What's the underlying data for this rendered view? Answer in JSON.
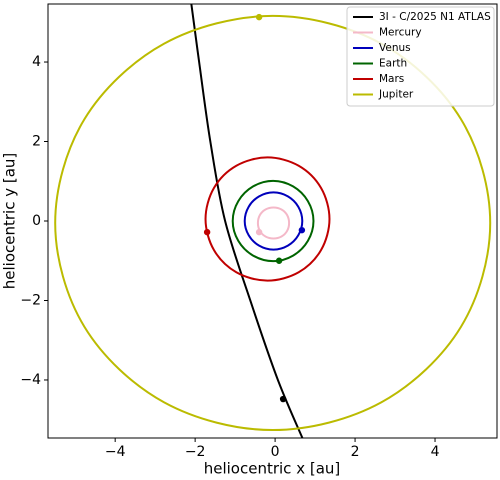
{
  "chart_data": {
    "type": "line",
    "xlabel": "heliocentric x [au]",
    "ylabel": "heliocentric y [au]",
    "xlim": [
      -5.68,
      5.55
    ],
    "ylim": [
      -5.46,
      5.46
    ],
    "xticks": [
      {
        "value": -4,
        "label": "−4"
      },
      {
        "value": -2,
        "label": "−2"
      },
      0,
      2,
      4
    ],
    "yticks": [
      {
        "value": -4,
        "label": "−4"
      },
      {
        "value": -2,
        "label": "−2"
      },
      0,
      2,
      4
    ],
    "grid": false,
    "legend": "upper right",
    "series": [
      {
        "name": "3I - C/2025 N1 ATLAS",
        "color": "#000000",
        "x": [
          -2.1,
          -1.9,
          -1.62,
          -1.25,
          -0.62,
          0.07,
          0.7
        ],
        "y": [
          5.5,
          4,
          2,
          0,
          -2,
          -4,
          -5.5
        ],
        "position": {
          "x": 0.2,
          "y": -4.48
        }
      },
      {
        "name": "Mercury",
        "color": "#f4b8c8",
        "x": [
          0.35,
          0.3,
          0.16,
          -0.04,
          -0.24,
          -0.38,
          -0.43,
          -0.38,
          -0.24,
          -0.04,
          0.16,
          0.3,
          0.35
        ],
        "y": [
          -0.05,
          0.15,
          0.29,
          0.34,
          0.29,
          0.15,
          -0.05,
          -0.25,
          -0.39,
          -0.44,
          -0.39,
          -0.25,
          -0.05
        ],
        "position": {
          "x": -0.4,
          "y": -0.28
        }
      },
      {
        "name": "Venus",
        "color": "#0000bb",
        "x": [
          0.68,
          0.58,
          0.32,
          -0.04,
          -0.4,
          -0.66,
          -0.76,
          -0.66,
          -0.4,
          -0.04,
          0.32,
          0.58,
          0.68
        ],
        "y": [
          0,
          0.36,
          0.62,
          0.72,
          0.62,
          0.36,
          0,
          -0.36,
          -0.62,
          -0.72,
          -0.62,
          -0.36,
          0
        ],
        "position": {
          "x": 0.67,
          "y": -0.23
        }
      },
      {
        "name": "Earth",
        "color": "#006400",
        "x": [
          0.96,
          0.82,
          0.45,
          -0.05,
          -0.55,
          -0.92,
          -1.06,
          -0.92,
          -0.55,
          -0.05,
          0.45,
          0.82,
          0.96
        ],
        "y": [
          0,
          0.5,
          0.87,
          1.01,
          0.87,
          0.5,
          0,
          -0.5,
          -0.87,
          -1.01,
          -0.87,
          -0.5,
          0
        ],
        "position": {
          "x": 0.1,
          "y": -1.0
        }
      },
      {
        "name": "Mars",
        "color": "#c00000",
        "x": [
          1.36,
          1.15,
          0.59,
          -0.19,
          -0.97,
          -1.53,
          -1.74,
          -1.53,
          -0.97,
          -0.19,
          0.59,
          1.15,
          1.36
        ],
        "y": [
          0.05,
          0.83,
          1.39,
          1.6,
          1.39,
          0.83,
          0.05,
          -0.73,
          -1.29,
          -1.5,
          -1.29,
          -0.73,
          0.05
        ],
        "position": {
          "x": -1.7,
          "y": -0.28
        }
      },
      {
        "name": "Jupiter",
        "color": "#bbbb00",
        "x": [
          5.38,
          4.65,
          2.66,
          -0.06,
          -2.78,
          -4.77,
          -5.5,
          -4.77,
          -2.78,
          -0.06,
          2.66,
          4.65,
          5.38
        ],
        "y": [
          -0.05,
          2.56,
          4.46,
          5.16,
          4.46,
          2.56,
          -0.05,
          -2.66,
          -4.56,
          -5.26,
          -4.56,
          -2.66,
          -0.05
        ],
        "position": {
          "x": -0.4,
          "y": 5.13
        }
      }
    ]
  }
}
